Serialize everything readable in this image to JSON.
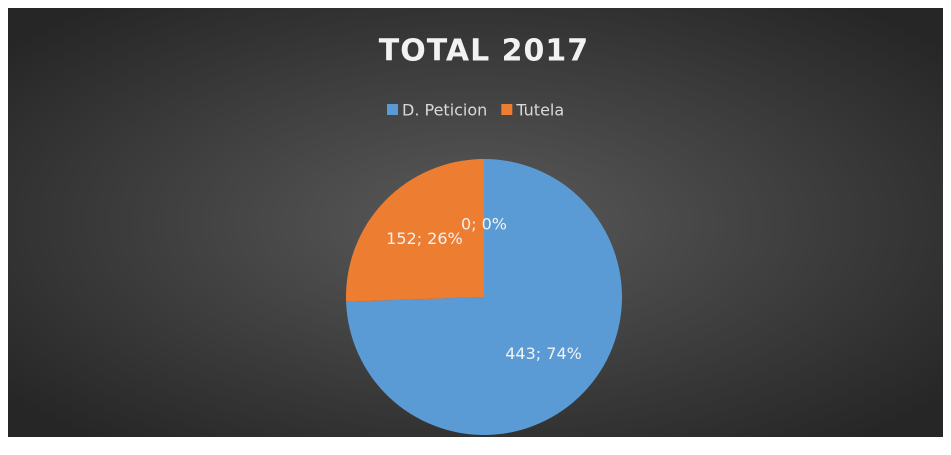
{
  "chart_data": {
    "type": "pie",
    "title": "TOTAL 2017",
    "categories": [
      "D. Peticion",
      "Tutela",
      null
    ],
    "values": [
      443,
      152,
      0
    ],
    "value_labels": [
      "443; 74%",
      "152; 26%",
      "0; 0%"
    ],
    "colors": [
      "#5b9bd5",
      "#ed7d31",
      "#a5a5a5"
    ],
    "legend": "top"
  }
}
